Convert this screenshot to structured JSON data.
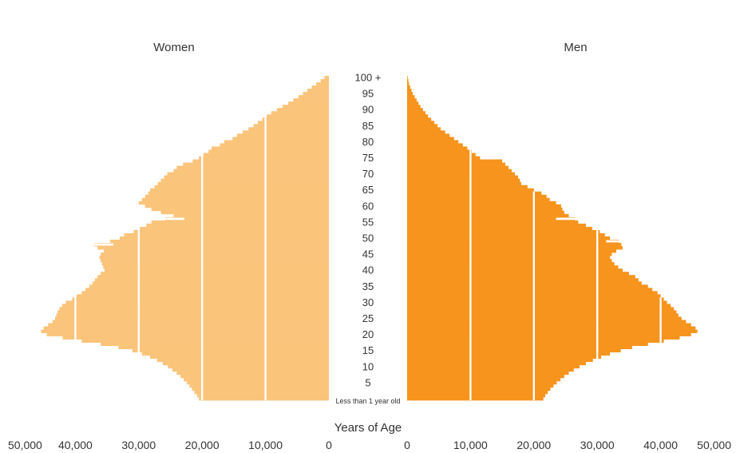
{
  "chart_data": {
    "type": "bar",
    "orientation": "horizontal",
    "style": "population-pyramid",
    "xlabel": "Years of Age",
    "age_tick_labels": [
      "Less than 1 year old",
      "5",
      "10",
      "15",
      "20",
      "25",
      "30",
      "35",
      "40",
      "45",
      "50",
      "55",
      "60",
      "65",
      "70",
      "75",
      "80",
      "85",
      "90",
      "95",
      "100 +"
    ],
    "x_tick_labels_women": [
      "50,000",
      "40,000",
      "30,000",
      "20,000",
      "10,000",
      "0"
    ],
    "x_tick_labels_men": [
      "0",
      "10,000",
      "20,000",
      "30,000",
      "40,000",
      "50,000"
    ],
    "xlim": [
      0,
      50000
    ],
    "gridlines": [
      10000,
      20000,
      30000,
      40000
    ],
    "ages": [
      0,
      1,
      2,
      3,
      4,
      5,
      6,
      7,
      8,
      9,
      10,
      11,
      12,
      13,
      14,
      15,
      16,
      17,
      18,
      19,
      20,
      21,
      22,
      23,
      24,
      25,
      26,
      27,
      28,
      29,
      30,
      31,
      32,
      33,
      34,
      35,
      36,
      37,
      38,
      39,
      40,
      41,
      42,
      43,
      44,
      45,
      46,
      47,
      48,
      49,
      50,
      51,
      52,
      53,
      54,
      55,
      56,
      57,
      58,
      59,
      60,
      61,
      62,
      63,
      64,
      65,
      66,
      67,
      68,
      69,
      70,
      71,
      72,
      73,
      74,
      75,
      76,
      77,
      78,
      79,
      80,
      81,
      82,
      83,
      84,
      85,
      86,
      87,
      88,
      89,
      90,
      91,
      92,
      93,
      94,
      95,
      96,
      97,
      98,
      99,
      100
    ],
    "series": [
      {
        "name": "Women",
        "color": "#fbc47b",
        "side": "left",
        "values": [
          20500,
          20800,
          21200,
          21600,
          22000,
          22400,
          22900,
          23400,
          24000,
          24700,
          25400,
          26200,
          27100,
          28200,
          29500,
          31000,
          33200,
          36000,
          39000,
          42000,
          44500,
          45400,
          45000,
          44300,
          43600,
          43200,
          43000,
          42800,
          42500,
          42100,
          41500,
          40500,
          39800,
          39000,
          38400,
          37800,
          37300,
          36900,
          36500,
          36000,
          35400,
          35600,
          35800,
          36000,
          36200,
          36000,
          35500,
          36500,
          37000,
          34500,
          33000,
          32300,
          30800,
          29800,
          28800,
          28000,
          25800,
          24500,
          26500,
          28000,
          29000,
          30000,
          29500,
          29000,
          28500,
          28200,
          27500,
          27000,
          26500,
          26000,
          25500,
          24500,
          24000,
          23000,
          21500,
          20500,
          19800,
          19000,
          18500,
          17200,
          16500,
          15200,
          14500,
          13600,
          12700,
          11900,
          11200,
          10500,
          9800,
          9100,
          8200,
          7300,
          6400,
          5600,
          4800,
          4100,
          3400,
          2700,
          2000,
          1300,
          700
        ],
        "notches": [
          {
            "age": 48,
            "depth": 3000
          },
          {
            "age": 56,
            "depth": 3000
          }
        ]
      },
      {
        "name": "Men",
        "color": "#f7941d",
        "side": "right",
        "values": [
          21500,
          21800,
          22200,
          22600,
          23100,
          23600,
          24200,
          24800,
          25500,
          26300,
          27200,
          28200,
          29300,
          30600,
          32000,
          33700,
          35500,
          38000,
          40500,
          43000,
          44800,
          45800,
          45500,
          44800,
          44000,
          43300,
          42800,
          42500,
          42100,
          41600,
          41000,
          40500,
          40000,
          39500,
          38700,
          38000,
          37000,
          36500,
          36000,
          35000,
          34000,
          33300,
          32700,
          32300,
          32000,
          32300,
          33000,
          34000,
          33800,
          33400,
          32000,
          31200,
          30400,
          29200,
          28200,
          27000,
          26500,
          25500,
          24800,
          24500,
          24300,
          23500,
          22500,
          22000,
          21200,
          20000,
          19000,
          18000,
          17800,
          17500,
          17000,
          16500,
          16000,
          15500,
          15000,
          11500,
          10800,
          10200,
          9500,
          8800,
          8100,
          7400,
          6700,
          6000,
          5300,
          4800,
          4300,
          3800,
          3300,
          2900,
          2500,
          2100,
          1800,
          1500,
          1200,
          900,
          700,
          500,
          300,
          200,
          100
        ],
        "notches": [
          {
            "age": 49,
            "depth": 2000
          },
          {
            "age": 56,
            "depth": 3000
          }
        ]
      }
    ]
  }
}
